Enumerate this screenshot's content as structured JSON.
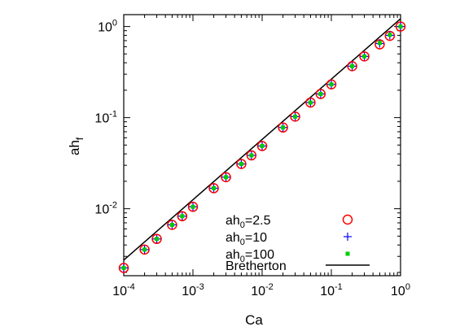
{
  "chart_data": {
    "type": "scatter",
    "xlabel": "Ca",
    "ylabel": "ah_f",
    "x_scale": "log",
    "y_scale": "log",
    "xlim": [
      0.0001,
      1.0
    ],
    "ylim": [
      0.00184,
      1.35
    ],
    "x_ticks": [
      {
        "base": "10",
        "exp": "-4",
        "value": 0.0001
      },
      {
        "base": "10",
        "exp": "-3",
        "value": 0.001
      },
      {
        "base": "10",
        "exp": "-2",
        "value": 0.01
      },
      {
        "base": "10",
        "exp": "-1",
        "value": 0.1
      },
      {
        "base": "10",
        "exp": "0",
        "value": 1
      }
    ],
    "y_ticks": [
      {
        "base": "10",
        "exp": "-2",
        "value": 0.01
      },
      {
        "base": "10",
        "exp": "-1",
        "value": 0.1
      },
      {
        "base": "10",
        "exp": "0",
        "value": 1
      }
    ],
    "grid": false,
    "legend_position": "bottom-right",
    "x": [
      0.0001,
      0.0002,
      0.0003,
      0.0005,
      0.0007,
      0.001,
      0.002,
      0.003,
      0.005,
      0.007,
      0.01,
      0.02,
      0.03,
      0.05,
      0.07,
      0.1,
      0.2,
      0.3,
      0.5,
      0.7,
      1.0
    ],
    "series": [
      {
        "name": "ah_0=2.5",
        "legend_base": "ah",
        "legend_sub": "0",
        "legend_rest": "=2.5",
        "marker": "open-circle",
        "color": "#ff0000",
        "values": [
          0.00224,
          0.00356,
          0.00466,
          0.00665,
          0.00828,
          0.0105,
          0.0168,
          0.0222,
          0.031,
          0.0385,
          0.0488,
          0.0779,
          0.1026,
          0.1464,
          0.1818,
          0.2316,
          0.367,
          0.47,
          0.637,
          0.79,
          1.0
        ]
      },
      {
        "name": "ah_0=10",
        "legend_base": "ah",
        "legend_sub": "0",
        "legend_rest": "=10",
        "marker": "plus",
        "color": "#0000ff",
        "values": [
          0.00224,
          0.00356,
          0.00466,
          0.00665,
          0.00828,
          0.0105,
          0.0168,
          0.0222,
          0.031,
          0.0385,
          0.0488,
          0.0779,
          0.1026,
          0.1464,
          0.1818,
          0.2316,
          0.367,
          0.47,
          0.65,
          0.8,
          1.0
        ]
      },
      {
        "name": "ah_0=100",
        "legend_base": "ah",
        "legend_sub": "0",
        "legend_rest": "=100",
        "marker": "filled-square",
        "color": "#00cc00",
        "values": [
          0.00224,
          0.00356,
          0.00466,
          0.00665,
          0.00828,
          0.0105,
          0.0168,
          0.0222,
          0.031,
          0.0385,
          0.0488,
          0.0779,
          0.1026,
          0.1464,
          0.1818,
          0.2316,
          0.367,
          0.47,
          0.66,
          0.81,
          1.0
        ]
      }
    ],
    "reference_line": {
      "name": "Bretherton",
      "color": "#000000",
      "x": [
        0.0001,
        1.0
      ],
      "y": [
        0.00273,
        1.216
      ]
    }
  }
}
